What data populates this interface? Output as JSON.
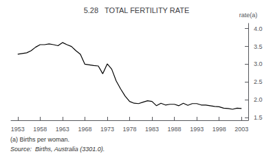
{
  "chart_data": {
    "type": "line",
    "title": "5.28   TOTAL FERTILITY RATE",
    "ylabel": "rate(a)",
    "annotations": [
      "(a) Births per woman.",
      "Source:  Births, Australia (3301.0)."
    ],
    "x": [
      1953,
      1954,
      1955,
      1956,
      1957,
      1958,
      1959,
      1960,
      1961,
      1962,
      1963,
      1964,
      1965,
      1966,
      1967,
      1968,
      1969,
      1970,
      1971,
      1972,
      1973,
      1974,
      1975,
      1976,
      1977,
      1978,
      1979,
      1980,
      1981,
      1982,
      1983,
      1984,
      1985,
      1986,
      1987,
      1988,
      1989,
      1990,
      1991,
      1992,
      1993,
      1994,
      1995,
      1996,
      1997,
      1998,
      1999,
      2000,
      2001,
      2002,
      2003
    ],
    "values": [
      3.28,
      3.3,
      3.32,
      3.38,
      3.48,
      3.55,
      3.55,
      3.57,
      3.55,
      3.52,
      3.61,
      3.55,
      3.5,
      3.38,
      3.28,
      3.0,
      2.98,
      2.96,
      2.95,
      2.73,
      3.01,
      2.86,
      2.53,
      2.3,
      2.1,
      1.95,
      1.9,
      1.89,
      1.93,
      1.97,
      1.95,
      1.83,
      1.9,
      1.85,
      1.87,
      1.87,
      1.83,
      1.9,
      1.84,
      1.89,
      1.89,
      1.85,
      1.85,
      1.83,
      1.81,
      1.8,
      1.76,
      1.75,
      1.73,
      1.76,
      1.75
    ],
    "color": "#000000",
    "xlim": [
      1951.5,
      2004.5
    ],
    "xticks": [
      1953,
      1958,
      1963,
      1968,
      1973,
      1978,
      1983,
      1988,
      1993,
      1998,
      2003
    ],
    "ylim": [
      1.42,
      4.15
    ],
    "yticks": [
      1.5,
      {
        "value": 2.0,
        "label": "2.0"
      },
      2.5,
      {
        "value": 3.0,
        "label": "3.0"
      },
      3.5,
      {
        "value": 4.0,
        "label": "4.0"
      }
    ],
    "grid": false
  }
}
